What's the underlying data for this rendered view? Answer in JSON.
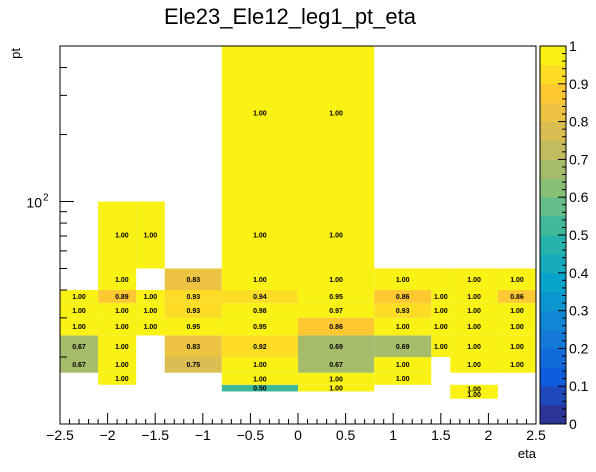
{
  "chart_data": {
    "type": "heatmap",
    "title": "Ele23_Ele12_leg1_pt_eta",
    "xlabel": "eta",
    "ylabel": "pt",
    "xlim": [
      -2.5,
      2.5
    ],
    "ylim": [
      10,
      500
    ],
    "ylog": true,
    "zlim": [
      0,
      1
    ],
    "x_ticks": [
      -2.5,
      -2,
      -1.5,
      -1,
      -0.5,
      0,
      0.5,
      1,
      1.5,
      2,
      2.5
    ],
    "x_tick_labels": [
      "−2.5",
      "−2",
      "−1.5",
      "−1",
      "−0.5",
      "0",
      "0.5",
      "1",
      "1.5",
      "2",
      "2.5"
    ],
    "y_tick_labels": [
      {
        "value": 100,
        "label": "10",
        "sup": "2"
      }
    ],
    "z_ticks": [
      0,
      0.1,
      0.2,
      0.3,
      0.4,
      0.5,
      0.6,
      0.7,
      0.8,
      0.9,
      1
    ],
    "z_tick_labels": [
      "0",
      "0.1",
      "0.2",
      "0.3",
      "0.4",
      "0.5",
      "0.6",
      "0.7",
      "0.8",
      "0.9",
      "1"
    ],
    "palette": [
      "#352a87",
      "#0f5cdd",
      "#1481d6",
      "#06a4ca",
      "#2eb7a4",
      "#87bf77",
      "#d1bb59",
      "#fec832",
      "#f9fb0e"
    ],
    "cells": [
      {
        "eta": [
          -2.1,
          -1.7
        ],
        "pt": [
          15,
          17
        ],
        "value": 1.0,
        "label": "1.00"
      },
      {
        "eta": [
          -0.8,
          0.0
        ],
        "pt": [
          14,
          15
        ],
        "value": 0.5,
        "label": "0.50"
      },
      {
        "eta": [
          -0.8,
          0.0
        ],
        "pt": [
          15,
          17
        ],
        "value": 1.0,
        "label": "1.00"
      },
      {
        "eta": [
          0.0,
          0.8
        ],
        "pt": [
          14,
          15
        ],
        "value": 1.0,
        "label": "1.00"
      },
      {
        "eta": [
          0.0,
          0.8
        ],
        "pt": [
          15,
          17
        ],
        "value": 1.0,
        "label": "1.00"
      },
      {
        "eta": [
          0.8,
          1.4
        ],
        "pt": [
          15,
          17
        ],
        "value": 1.0,
        "label": "1.00"
      },
      {
        "eta": [
          1.6,
          2.1
        ],
        "pt": [
          13,
          14
        ],
        "value": 1.0,
        "label": "1.00"
      },
      {
        "eta": [
          1.6,
          2.1
        ],
        "pt": [
          14,
          15
        ],
        "value": 1.0,
        "label": "1.00"
      },
      {
        "eta": [
          -2.5,
          -2.1
        ],
        "pt": [
          17,
          20
        ],
        "value": 0.67,
        "label": "0.67"
      },
      {
        "eta": [
          -2.1,
          -1.7
        ],
        "pt": [
          17,
          20
        ],
        "value": 1.0,
        "label": "1.00"
      },
      {
        "eta": [
          -1.4,
          -0.8
        ],
        "pt": [
          17,
          20
        ],
        "value": 0.75,
        "label": "0.75"
      },
      {
        "eta": [
          -0.8,
          0.0
        ],
        "pt": [
          17,
          20
        ],
        "value": 1.0,
        "label": "1.00"
      },
      {
        "eta": [
          0.0,
          0.8
        ],
        "pt": [
          17,
          20
        ],
        "value": 0.67,
        "label": "0.67"
      },
      {
        "eta": [
          0.8,
          1.4
        ],
        "pt": [
          17,
          20
        ],
        "value": 1.0,
        "label": "1.00"
      },
      {
        "eta": [
          1.6,
          2.1
        ],
        "pt": [
          17,
          20
        ],
        "value": 1.0,
        "label": "1.00"
      },
      {
        "eta": [
          2.1,
          2.5
        ],
        "pt": [
          17,
          20
        ],
        "value": 1.0,
        "label": "1.00"
      },
      {
        "eta": [
          -2.5,
          -2.1
        ],
        "pt": [
          20,
          25
        ],
        "value": 0.67,
        "label": "0.67"
      },
      {
        "eta": [
          -2.1,
          -1.7
        ],
        "pt": [
          20,
          25
        ],
        "value": 1.0,
        "label": "1.00"
      },
      {
        "eta": [
          -1.4,
          -0.8
        ],
        "pt": [
          20,
          25
        ],
        "value": 0.83,
        "label": "0.83"
      },
      {
        "eta": [
          -0.8,
          0.0
        ],
        "pt": [
          20,
          25
        ],
        "value": 0.92,
        "label": "0.92"
      },
      {
        "eta": [
          0.0,
          0.8
        ],
        "pt": [
          20,
          25
        ],
        "value": 0.69,
        "label": "0.69"
      },
      {
        "eta": [
          0.8,
          1.4
        ],
        "pt": [
          20,
          25
        ],
        "value": 0.69,
        "label": "0.69"
      },
      {
        "eta": [
          1.4,
          1.6
        ],
        "pt": [
          20,
          25
        ],
        "value": 1.0,
        "label": "1.00"
      },
      {
        "eta": [
          1.6,
          2.1
        ],
        "pt": [
          20,
          25
        ],
        "value": 1.0,
        "label": "1.00"
      },
      {
        "eta": [
          2.1,
          2.5
        ],
        "pt": [
          20,
          25
        ],
        "value": 1.0,
        "label": "1.00"
      },
      {
        "eta": [
          -2.5,
          -2.1
        ],
        "pt": [
          25,
          30
        ],
        "value": 1.0,
        "label": "1.00"
      },
      {
        "eta": [
          -2.1,
          -1.7
        ],
        "pt": [
          25,
          30
        ],
        "value": 1.0,
        "label": "1.00"
      },
      {
        "eta": [
          -1.7,
          -1.4
        ],
        "pt": [
          25,
          30
        ],
        "value": 1.0,
        "label": "1.00"
      },
      {
        "eta": [
          -1.4,
          -0.8
        ],
        "pt": [
          25,
          30
        ],
        "value": 0.95,
        "label": "0.95"
      },
      {
        "eta": [
          -0.8,
          0.0
        ],
        "pt": [
          25,
          30
        ],
        "value": 0.95,
        "label": "0.95"
      },
      {
        "eta": [
          0.0,
          0.8
        ],
        "pt": [
          25,
          30
        ],
        "value": 0.86,
        "label": "0.86"
      },
      {
        "eta": [
          0.8,
          1.4
        ],
        "pt": [
          25,
          30
        ],
        "value": 1.0,
        "label": "1.00"
      },
      {
        "eta": [
          1.4,
          1.6
        ],
        "pt": [
          25,
          30
        ],
        "value": 1.0,
        "label": "1.00"
      },
      {
        "eta": [
          1.6,
          2.1
        ],
        "pt": [
          25,
          30
        ],
        "value": 1.0,
        "label": "1.00"
      },
      {
        "eta": [
          2.1,
          2.5
        ],
        "pt": [
          25,
          30
        ],
        "value": 1.0,
        "label": "1.00"
      },
      {
        "eta": [
          -2.5,
          -2.1
        ],
        "pt": [
          30,
          35
        ],
        "value": 1.0,
        "label": "1.00"
      },
      {
        "eta": [
          -2.1,
          -1.7
        ],
        "pt": [
          30,
          35
        ],
        "value": 1.0,
        "label": "1.00"
      },
      {
        "eta": [
          -1.7,
          -1.4
        ],
        "pt": [
          30,
          35
        ],
        "value": 1.0,
        "label": "1.00"
      },
      {
        "eta": [
          -1.4,
          -0.8
        ],
        "pt": [
          30,
          35
        ],
        "value": 0.93,
        "label": "0.93"
      },
      {
        "eta": [
          -0.8,
          0.0
        ],
        "pt": [
          30,
          35
        ],
        "value": 0.98,
        "label": "0.98"
      },
      {
        "eta": [
          0.0,
          0.8
        ],
        "pt": [
          30,
          35
        ],
        "value": 0.97,
        "label": "0.97"
      },
      {
        "eta": [
          0.8,
          1.4
        ],
        "pt": [
          30,
          35
        ],
        "value": 0.93,
        "label": "0.93"
      },
      {
        "eta": [
          1.4,
          1.6
        ],
        "pt": [
          30,
          35
        ],
        "value": 1.0,
        "label": "1.00"
      },
      {
        "eta": [
          1.6,
          2.1
        ],
        "pt": [
          30,
          35
        ],
        "value": 1.0,
        "label": "1.00"
      },
      {
        "eta": [
          2.1,
          2.5
        ],
        "pt": [
          30,
          35
        ],
        "value": 1.0,
        "label": "1.00"
      },
      {
        "eta": [
          -2.5,
          -2.1
        ],
        "pt": [
          35,
          40
        ],
        "value": 1.0,
        "label": "1.00"
      },
      {
        "eta": [
          -2.1,
          -1.7
        ],
        "pt": [
          35,
          40
        ],
        "value": 0.89,
        "label": "0.89"
      },
      {
        "eta": [
          -1.7,
          -1.4
        ],
        "pt": [
          35,
          40
        ],
        "value": 1.0,
        "label": "1.00"
      },
      {
        "eta": [
          -1.4,
          -0.8
        ],
        "pt": [
          35,
          40
        ],
        "value": 0.93,
        "label": "0.93"
      },
      {
        "eta": [
          -0.8,
          0.0
        ],
        "pt": [
          35,
          40
        ],
        "value": 0.94,
        "label": "0.94"
      },
      {
        "eta": [
          0.0,
          0.8
        ],
        "pt": [
          35,
          40
        ],
        "value": 0.95,
        "label": "0.95"
      },
      {
        "eta": [
          0.8,
          1.4
        ],
        "pt": [
          35,
          40
        ],
        "value": 0.86,
        "label": "0.86"
      },
      {
        "eta": [
          1.4,
          1.6
        ],
        "pt": [
          35,
          40
        ],
        "value": 1.0,
        "label": "1.00"
      },
      {
        "eta": [
          1.6,
          2.1
        ],
        "pt": [
          35,
          40
        ],
        "value": 1.0,
        "label": "1.00"
      },
      {
        "eta": [
          2.1,
          2.5
        ],
        "pt": [
          35,
          40
        ],
        "value": 0.86,
        "label": "0.86"
      },
      {
        "eta": [
          -2.1,
          -1.7
        ],
        "pt": [
          40,
          50
        ],
        "value": 1.0,
        "label": "1.00"
      },
      {
        "eta": [
          -1.4,
          -0.8
        ],
        "pt": [
          40,
          50
        ],
        "value": 0.83,
        "label": "0.83"
      },
      {
        "eta": [
          -0.8,
          0.0
        ],
        "pt": [
          40,
          50
        ],
        "value": 1.0,
        "label": "1.00"
      },
      {
        "eta": [
          0.0,
          0.8
        ],
        "pt": [
          40,
          50
        ],
        "value": 1.0,
        "label": "1.00"
      },
      {
        "eta": [
          0.8,
          1.6
        ],
        "pt": [
          40,
          50
        ],
        "value": 1.0,
        "label": "1.00"
      },
      {
        "eta": [
          1.6,
          2.1
        ],
        "pt": [
          40,
          50
        ],
        "value": 1.0,
        "label": "1.00"
      },
      {
        "eta": [
          2.1,
          2.5
        ],
        "pt": [
          40,
          50
        ],
        "value": 1.0,
        "label": "1.00"
      },
      {
        "eta": [
          -2.1,
          -1.7
        ],
        "pt": [
          50,
          100
        ],
        "value": 1.0,
        "label": "1.00"
      },
      {
        "eta": [
          -1.7,
          -1.4
        ],
        "pt": [
          50,
          100
        ],
        "value": 1.0,
        "label": "1.00"
      },
      {
        "eta": [
          -0.8,
          0.0
        ],
        "pt": [
          50,
          200
        ],
        "value": 1.0,
        "label": "1.00"
      },
      {
        "eta": [
          0.0,
          0.8
        ],
        "pt": [
          50,
          200
        ],
        "value": 1.0,
        "label": "1.00"
      },
      {
        "eta": [
          -0.8,
          0.0
        ],
        "pt": [
          200,
          500
        ],
        "value": 1.0,
        "label": "1.00"
      },
      {
        "eta": [
          0.0,
          0.8
        ],
        "pt": [
          200,
          500
        ],
        "value": 1.0,
        "label": "1.00"
      }
    ],
    "cell_labels": [
      {
        "eta": -1.85,
        "pt": 16.0,
        "label": "1.00"
      },
      {
        "eta": -0.4,
        "pt": 15.9,
        "label": "1.00"
      },
      {
        "eta": -0.4,
        "pt": 14.5,
        "label": "0.50"
      },
      {
        "eta": 0.4,
        "pt": 15.9,
        "label": "1.00"
      },
      {
        "eta": 0.4,
        "pt": 14.5,
        "label": "1.00"
      },
      {
        "eta": 1.1,
        "pt": 16.0,
        "label": "1.00"
      },
      {
        "eta": 1.85,
        "pt": 14.4,
        "label": "1.00"
      },
      {
        "eta": 1.85,
        "pt": 13.6,
        "label": "1.00"
      },
      {
        "eta": -2.3,
        "pt": 18.5,
        "label": "0.67"
      },
      {
        "eta": -1.85,
        "pt": 18.5,
        "label": "1.00"
      },
      {
        "eta": -1.1,
        "pt": 18.5,
        "label": "0.75"
      },
      {
        "eta": -0.4,
        "pt": 18.5,
        "label": "1.00"
      },
      {
        "eta": 0.4,
        "pt": 18.5,
        "label": "0.67"
      },
      {
        "eta": 1.1,
        "pt": 18.5,
        "label": "1.00"
      },
      {
        "eta": 1.85,
        "pt": 18.5,
        "label": "1.00"
      },
      {
        "eta": 2.3,
        "pt": 18.5,
        "label": "1.00"
      },
      {
        "eta": -2.3,
        "pt": 22.3,
        "label": "0.67"
      },
      {
        "eta": -1.85,
        "pt": 22.3,
        "label": "1.00"
      },
      {
        "eta": -1.1,
        "pt": 22.3,
        "label": "0.83"
      },
      {
        "eta": -0.4,
        "pt": 22.3,
        "label": "0.92"
      },
      {
        "eta": 0.4,
        "pt": 22.3,
        "label": "0.69"
      },
      {
        "eta": 1.1,
        "pt": 22.3,
        "label": "0.69"
      },
      {
        "eta": 1.5,
        "pt": 22.3,
        "label": "1.00"
      },
      {
        "eta": 1.85,
        "pt": 22.3,
        "label": "1.00"
      },
      {
        "eta": 2.3,
        "pt": 22.3,
        "label": "1.00"
      },
      {
        "eta": -2.3,
        "pt": 27.4,
        "label": "1.00"
      },
      {
        "eta": -1.85,
        "pt": 27.4,
        "label": "1.00"
      },
      {
        "eta": -1.55,
        "pt": 27.4,
        "label": "1.00"
      },
      {
        "eta": -1.1,
        "pt": 27.4,
        "label": "0.95"
      },
      {
        "eta": -0.4,
        "pt": 27.4,
        "label": "0.95"
      },
      {
        "eta": 0.4,
        "pt": 27.4,
        "label": "0.86"
      },
      {
        "eta": 1.1,
        "pt": 27.4,
        "label": "1.00"
      },
      {
        "eta": 1.5,
        "pt": 27.4,
        "label": "1.00"
      },
      {
        "eta": 1.85,
        "pt": 27.4,
        "label": "1.00"
      },
      {
        "eta": 2.3,
        "pt": 27.4,
        "label": "1.00"
      },
      {
        "eta": -2.3,
        "pt": 32.4,
        "label": "1.00"
      },
      {
        "eta": -1.85,
        "pt": 32.4,
        "label": "1.00"
      },
      {
        "eta": -1.55,
        "pt": 32.4,
        "label": "1.00"
      },
      {
        "eta": -1.1,
        "pt": 32.4,
        "label": "0.93"
      },
      {
        "eta": -0.4,
        "pt": 32.4,
        "label": "0.98"
      },
      {
        "eta": 0.4,
        "pt": 32.4,
        "label": "0.97"
      },
      {
        "eta": 1.1,
        "pt": 32.4,
        "label": "0.93"
      },
      {
        "eta": 1.5,
        "pt": 32.4,
        "label": "1.00"
      },
      {
        "eta": 1.85,
        "pt": 32.4,
        "label": "1.00"
      },
      {
        "eta": 2.3,
        "pt": 32.4,
        "label": "1.00"
      },
      {
        "eta": -2.3,
        "pt": 37.4,
        "label": "1.00"
      },
      {
        "eta": -1.85,
        "pt": 37.4,
        "label": "0.89"
      },
      {
        "eta": -1.55,
        "pt": 37.4,
        "label": "1.00"
      },
      {
        "eta": -1.1,
        "pt": 37.4,
        "label": "0.93"
      },
      {
        "eta": -0.4,
        "pt": 37.4,
        "label": "0.94"
      },
      {
        "eta": 0.4,
        "pt": 37.4,
        "label": "0.95"
      },
      {
        "eta": 1.1,
        "pt": 37.4,
        "label": "0.86"
      },
      {
        "eta": 1.5,
        "pt": 37.4,
        "label": "1.00"
      },
      {
        "eta": 1.85,
        "pt": 37.4,
        "label": "1.00"
      },
      {
        "eta": 2.3,
        "pt": 37.4,
        "label": "0.86"
      },
      {
        "eta": -1.85,
        "pt": 44.7,
        "label": "1.00"
      },
      {
        "eta": -1.1,
        "pt": 44.7,
        "label": "0.83"
      },
      {
        "eta": -0.4,
        "pt": 44.7,
        "label": "1.00"
      },
      {
        "eta": 0.4,
        "pt": 44.7,
        "label": "1.00"
      },
      {
        "eta": 1.1,
        "pt": 44.7,
        "label": "1.00"
      },
      {
        "eta": 1.85,
        "pt": 44.7,
        "label": "1.00"
      },
      {
        "eta": 2.3,
        "pt": 44.7,
        "label": "1.00"
      },
      {
        "eta": -1.85,
        "pt": 70.7,
        "label": "1.00"
      },
      {
        "eta": -1.55,
        "pt": 70.7,
        "label": "1.00"
      },
      {
        "eta": -0.4,
        "pt": 70.7,
        "label": "1.00"
      },
      {
        "eta": 0.4,
        "pt": 70.7,
        "label": "1.00"
      },
      {
        "eta": -0.4,
        "pt": 250,
        "label": "1.00"
      },
      {
        "eta": 0.4,
        "pt": 250,
        "label": "1.00"
      }
    ]
  }
}
